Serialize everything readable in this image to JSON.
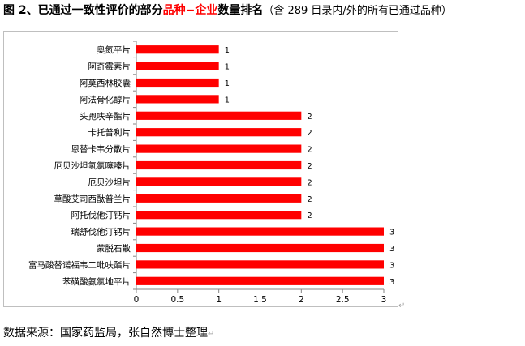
{
  "title": {
    "prefix": "图 2、已通过一致性评价的部分",
    "highlight": "品种−企业",
    "middle": "数量排名",
    "suffix": "（含 289 目录内/外的所有已通过品种）"
  },
  "source": "数据来源：国家药监局，张自然博士整理",
  "chart_data": {
    "type": "bar",
    "orientation": "horizontal",
    "bar_color": "#ff0000",
    "categories": [
      "奥氮平片",
      "阿奇霉素片",
      "阿莫西林胶囊",
      "阿法骨化醇片",
      "头孢呋辛酯片",
      "卡托普利片",
      "恩替卡韦分散片",
      "厄贝沙坦氢氯噻嗪片",
      "厄贝沙坦片",
      "草酸艾司西酞普兰片",
      "阿托伐他汀钙片",
      "瑞舒伐他汀钙片",
      "蒙脱石散",
      "富马酸替诺福韦二吡呋酯片",
      "苯磺酸氨氯地平片"
    ],
    "values": [
      1,
      1,
      1,
      1,
      2,
      2,
      2,
      2,
      2,
      2,
      2,
      3,
      3,
      3,
      3
    ],
    "data_labels": [
      "1",
      "1",
      "1",
      "1",
      "2",
      "2",
      "2",
      "2",
      "2",
      "2",
      "2",
      "3",
      "3",
      "3",
      "3"
    ],
    "xlim": [
      0,
      3
    ],
    "x_ticks": [
      "0",
      "0.5",
      "1",
      "1.5",
      "2",
      "2.5",
      "3"
    ],
    "gridlines": false,
    "legend": "none"
  }
}
